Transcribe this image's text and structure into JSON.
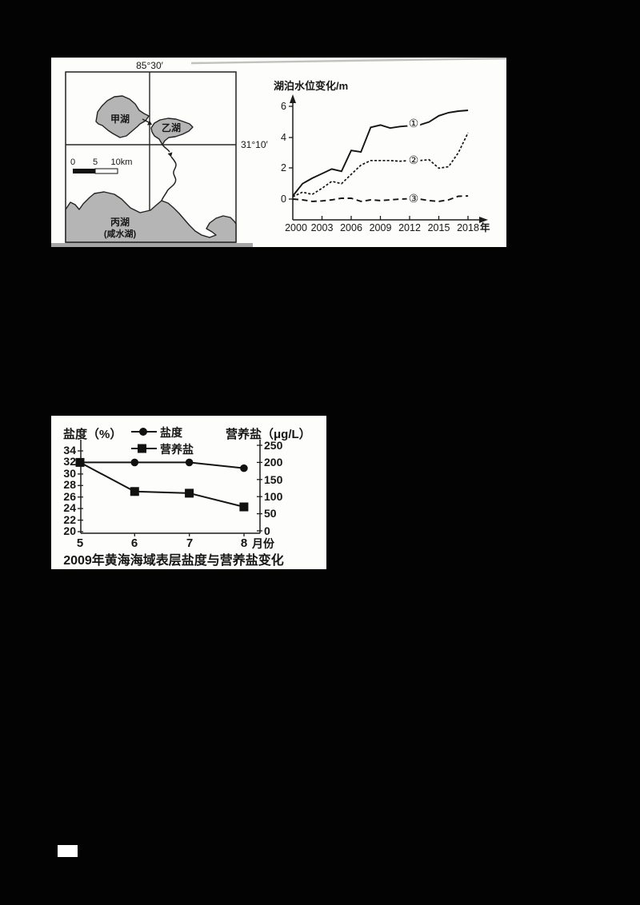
{
  "page": {
    "background": "#030303",
    "panel_color": "#fdfdfc"
  },
  "figure1": {
    "map": {
      "top_coordinate": "85°30′",
      "right_coordinate": "31°10′",
      "lake_jia_label": "甲湖",
      "lake_yi_label": "乙湖",
      "lake_bing_label": "丙湖",
      "lake_bing_note": "(咸水湖)",
      "scale_0": "0",
      "scale_5": "5",
      "scale_10": "10km"
    }
  },
  "chart_data": [
    {
      "type": "line",
      "title": "湖泊水位变化/m",
      "xlabel": "",
      "ylabel": "湖泊水位变化/m",
      "x": [
        2000,
        2001,
        2002,
        2003,
        2004,
        2005,
        2006,
        2007,
        2008,
        2009,
        2010,
        2011,
        2012,
        2013,
        2014,
        2015,
        2016,
        2017,
        2018
      ],
      "xtick_labels": [
        "2000",
        "2003",
        "2006",
        "2009",
        "2012",
        "2015",
        "2018"
      ],
      "x_axis_suffix": "年",
      "ytick_labels": [
        "0",
        "2",
        "4",
        "6"
      ],
      "ylim": [
        -0.3,
        6.6
      ],
      "grid": false,
      "series": [
        {
          "name": "①",
          "line_style": "solid",
          "values": [
            0.2,
            1.0,
            1.35,
            1.65,
            1.95,
            1.8,
            3.15,
            3.05,
            4.65,
            4.8,
            4.6,
            4.7,
            4.75,
            4.8,
            5.0,
            5.4,
            5.6,
            5.7,
            5.75
          ]
        },
        {
          "name": "②",
          "line_style": "dashed-fine",
          "values": [
            0.15,
            0.45,
            0.3,
            0.7,
            1.15,
            1.0,
            1.6,
            2.2,
            2.5,
            2.5,
            2.5,
            2.45,
            2.5,
            2.5,
            2.55,
            2.0,
            2.1,
            3.0,
            4.3
          ]
        },
        {
          "name": "③",
          "line_style": "dashed",
          "values": [
            0,
            -0.05,
            -0.15,
            -0.12,
            -0.05,
            0.05,
            0.05,
            -0.15,
            -0.05,
            -0.1,
            -0.05,
            0,
            0.02,
            0,
            -0.1,
            -0.15,
            -0.05,
            0.18,
            0.2
          ]
        }
      ]
    },
    {
      "type": "line",
      "title": "2009年黄海海域表层盐度与营养盐变化",
      "x": [
        5,
        6,
        7,
        8
      ],
      "x_unit": "月份",
      "left_axis": {
        "label": "盐度（%）",
        "ticks": [
          "20",
          "22",
          "24",
          "26",
          "28",
          "30",
          "32",
          "34"
        ],
        "ylim": [
          20,
          35
        ]
      },
      "right_axis": {
        "label": "营养盐（μg/L）",
        "ticks": [
          "0",
          "50",
          "100",
          "150",
          "200",
          "250"
        ],
        "ylim": [
          0,
          260
        ]
      },
      "legend_position": "top",
      "grid": false,
      "series": [
        {
          "name": "盐度",
          "axis": "left",
          "marker": "circle",
          "values": [
            32,
            32,
            32,
            31
          ]
        },
        {
          "name": "营养盐",
          "axis": "right",
          "marker": "square",
          "values": [
            200,
            115,
            110,
            70
          ]
        }
      ]
    }
  ]
}
